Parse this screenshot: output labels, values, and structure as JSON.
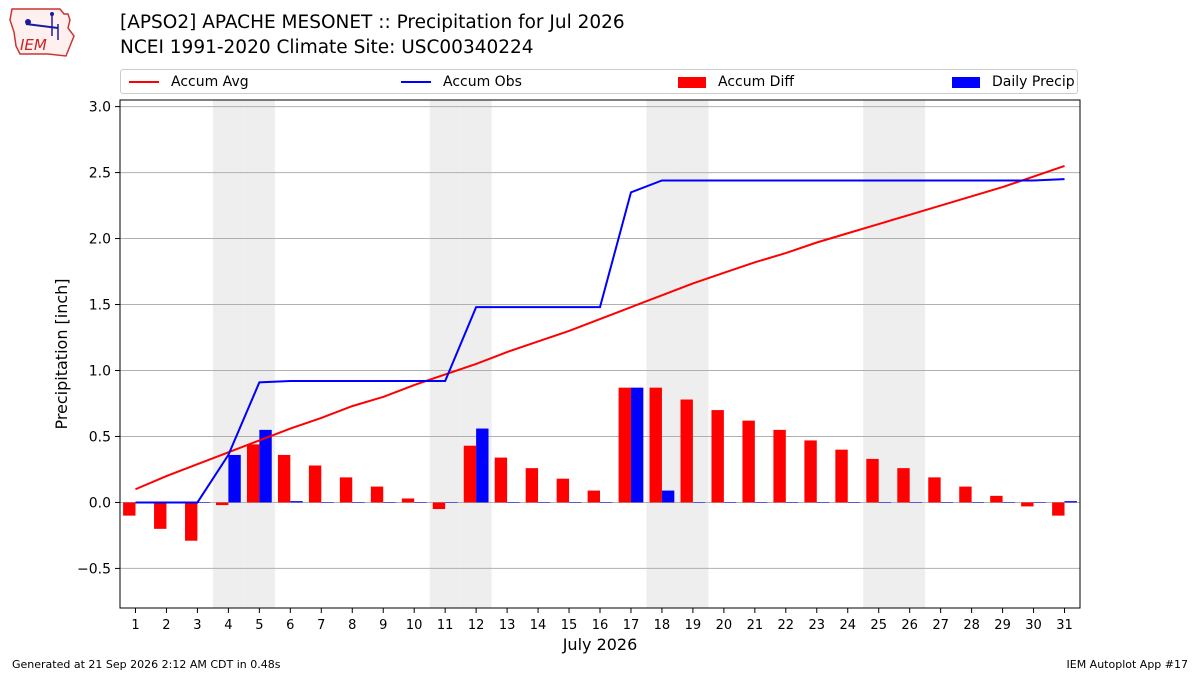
{
  "header": {
    "title_line1": "[APSO2] APACHE MESONET :: Precipitation for Jul 2026",
    "title_line2": "NCEI 1991-2020 Climate Site: USC00340224",
    "logo_text": "IEM"
  },
  "legend": {
    "items": [
      {
        "label": "Accum Avg",
        "color": "#ff0000",
        "kind": "line"
      },
      {
        "label": "Accum Obs",
        "color": "#0000ff",
        "kind": "line"
      },
      {
        "label": "Accum Diff",
        "color": "#ff0000",
        "kind": "box"
      },
      {
        "label": "Daily Precip",
        "color": "#0000ff",
        "kind": "box"
      }
    ]
  },
  "footer": {
    "generated": "Generated at 21 Sep 2026 2:12 AM CDT in 0.48s",
    "app": "IEM Autoplot App #17"
  },
  "chart_data": {
    "type": "bar",
    "xlabel": "July 2026",
    "ylabel": "Precipitation [inch]",
    "ylim": [
      -0.8,
      3.05
    ],
    "xlim": [
      0.5,
      31.5
    ],
    "yticks": [
      -0.5,
      0.0,
      0.5,
      1.0,
      1.5,
      2.0,
      2.5,
      3.0
    ],
    "ytick_labels": [
      "−0.5",
      "0.0",
      "0.5",
      "1.0",
      "1.5",
      "2.0",
      "2.5",
      "3.0"
    ],
    "categories": [
      "1",
      "2",
      "3",
      "4",
      "5",
      "6",
      "7",
      "8",
      "9",
      "10",
      "11",
      "12",
      "13",
      "14",
      "15",
      "16",
      "17",
      "18",
      "19",
      "20",
      "21",
      "22",
      "23",
      "24",
      "25",
      "26",
      "27",
      "28",
      "29",
      "30",
      "31"
    ],
    "grid": "horizontal",
    "legend_position": "top",
    "weekend_shading_days": [
      4,
      5,
      11,
      12,
      18,
      19,
      25,
      26
    ],
    "series": [
      {
        "name": "Accum Avg",
        "type": "line",
        "color": "#ff0000",
        "values": [
          0.1,
          0.2,
          0.29,
          0.38,
          0.47,
          0.56,
          0.64,
          0.73,
          0.8,
          0.89,
          0.97,
          1.05,
          1.14,
          1.22,
          1.3,
          1.39,
          1.48,
          1.57,
          1.66,
          1.74,
          1.82,
          1.89,
          1.97,
          2.04,
          2.11,
          2.18,
          2.25,
          2.32,
          2.39,
          2.47,
          2.55
        ]
      },
      {
        "name": "Accum Obs",
        "type": "line",
        "color": "#0000ff",
        "values": [
          0.0,
          0.0,
          0.0,
          0.36,
          0.91,
          0.92,
          0.92,
          0.92,
          0.92,
          0.92,
          0.92,
          1.48,
          1.48,
          1.48,
          1.48,
          1.48,
          2.35,
          2.44,
          2.44,
          2.44,
          2.44,
          2.44,
          2.44,
          2.44,
          2.44,
          2.44,
          2.44,
          2.44,
          2.44,
          2.44,
          2.45
        ]
      },
      {
        "name": "Accum Diff",
        "type": "bar",
        "color": "#ff0000",
        "values": [
          -0.1,
          -0.2,
          -0.29,
          -0.02,
          0.44,
          0.36,
          0.28,
          0.19,
          0.12,
          0.03,
          -0.05,
          0.43,
          0.34,
          0.26,
          0.18,
          0.09,
          0.87,
          0.87,
          0.78,
          0.7,
          0.62,
          0.55,
          0.47,
          0.4,
          0.33,
          0.26,
          0.19,
          0.12,
          0.05,
          -0.03,
          -0.1
        ]
      },
      {
        "name": "Daily Precip",
        "type": "bar",
        "color": "#0000ff",
        "values": [
          0.0,
          0.0,
          0.0,
          0.36,
          0.55,
          0.01,
          0.0,
          0.0,
          0.0,
          0.0,
          0.0,
          0.56,
          0.0,
          0.0,
          0.0,
          0.0,
          0.87,
          0.09,
          0.0,
          0.0,
          0.0,
          0.0,
          0.0,
          0.0,
          0.0,
          0.0,
          0.0,
          0.0,
          0.0,
          0.0,
          0.01
        ]
      }
    ]
  }
}
